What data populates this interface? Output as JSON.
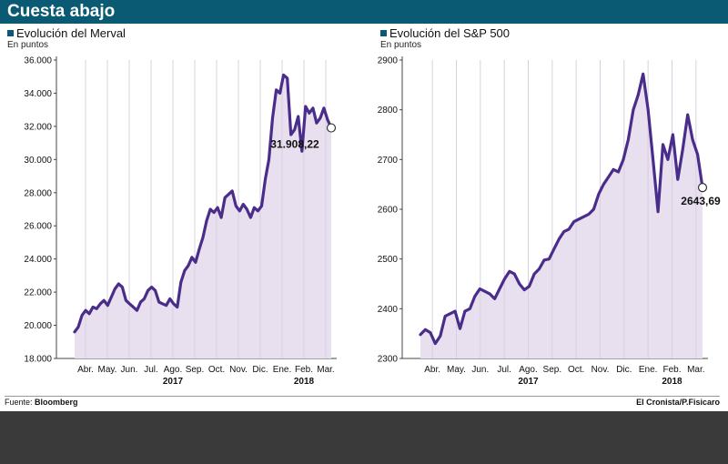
{
  "header": {
    "title": "Cuesta abajo"
  },
  "footer": {
    "source_label": "Fuente:",
    "source": "Bloomberg",
    "credit": "El Cronista/P.Fisicaro"
  },
  "colors": {
    "header_bg": "#0b5a73",
    "line": "#4a2d8a",
    "area": "#e8e0ee",
    "grid": "#d8d0e0"
  },
  "chart_data": [
    {
      "type": "area",
      "title": "Evolución del Merval",
      "subtitle": "En puntos",
      "ylim": [
        18000,
        36000
      ],
      "yticks": [
        "18.000",
        "20.000",
        "22.000",
        "24.000",
        "26.000",
        "28.000",
        "30.000",
        "32.000",
        "34.000",
        "36.000"
      ],
      "ytick_values": [
        18000,
        20000,
        22000,
        24000,
        26000,
        28000,
        30000,
        32000,
        34000,
        36000
      ],
      "months": [
        "Abr.",
        "May.",
        "Jun.",
        "Jul.",
        "Ago.",
        "Sep.",
        "Oct.",
        "Nov.",
        "Dic.",
        "Ene.",
        "Feb.",
        "Mar."
      ],
      "year_labels": [
        {
          "month_index": 4,
          "label": "2017"
        },
        {
          "month_index": 10,
          "label": "2018"
        }
      ],
      "last_value_label": "31.908,22",
      "series": [
        {
          "values": [
            19600,
            19900,
            20600,
            20900,
            20700,
            21100,
            21000,
            21300,
            21500,
            21200,
            21700,
            22200,
            22500,
            22300,
            21500,
            21300,
            21100,
            20900,
            21400,
            21600,
            22100,
            22300,
            22100,
            21400,
            21300,
            21200,
            21600,
            21300,
            21100,
            22600,
            23300,
            23600,
            24100,
            23800,
            24600,
            25300,
            26300,
            27000,
            26800,
            27100,
            26500,
            27700,
            27900,
            28100,
            27200,
            26900,
            27300,
            27000,
            26500,
            27100,
            26900,
            27200,
            28800,
            30000,
            32500,
            34200,
            34000,
            35100,
            34900,
            31500,
            31800,
            32600,
            30500,
            33200,
            32800,
            33100,
            32200,
            32500,
            33100,
            32400,
            31908.22
          ]
        }
      ]
    },
    {
      "type": "area",
      "title": "Evolución del S&P 500",
      "subtitle": "En puntos",
      "ylim": [
        2300,
        2900
      ],
      "yticks": [
        "2300",
        "2400",
        "2500",
        "2600",
        "2700",
        "2800",
        "2900"
      ],
      "ytick_values": [
        2300,
        2400,
        2500,
        2600,
        2700,
        2800,
        2900
      ],
      "months": [
        "Abr.",
        "May.",
        "Jun.",
        "Jul.",
        "Ago.",
        "Sep.",
        "Oct.",
        "Nov.",
        "Dic.",
        "Ene.",
        "Feb.",
        "Mar."
      ],
      "year_labels": [
        {
          "month_index": 4,
          "label": "2017"
        },
        {
          "month_index": 10,
          "label": "2018"
        }
      ],
      "last_value_label": "2643,69",
      "series": [
        {
          "values": [
            2348,
            2358,
            2352,
            2330,
            2345,
            2385,
            2390,
            2395,
            2360,
            2395,
            2400,
            2425,
            2440,
            2435,
            2430,
            2420,
            2440,
            2460,
            2475,
            2470,
            2450,
            2438,
            2445,
            2470,
            2480,
            2498,
            2500,
            2520,
            2540,
            2555,
            2560,
            2575,
            2580,
            2585,
            2590,
            2600,
            2630,
            2650,
            2665,
            2680,
            2675,
            2700,
            2740,
            2800,
            2830,
            2872,
            2800,
            2700,
            2595,
            2730,
            2700,
            2750,
            2660,
            2720,
            2790,
            2740,
            2710,
            2643.69
          ]
        }
      ]
    }
  ]
}
